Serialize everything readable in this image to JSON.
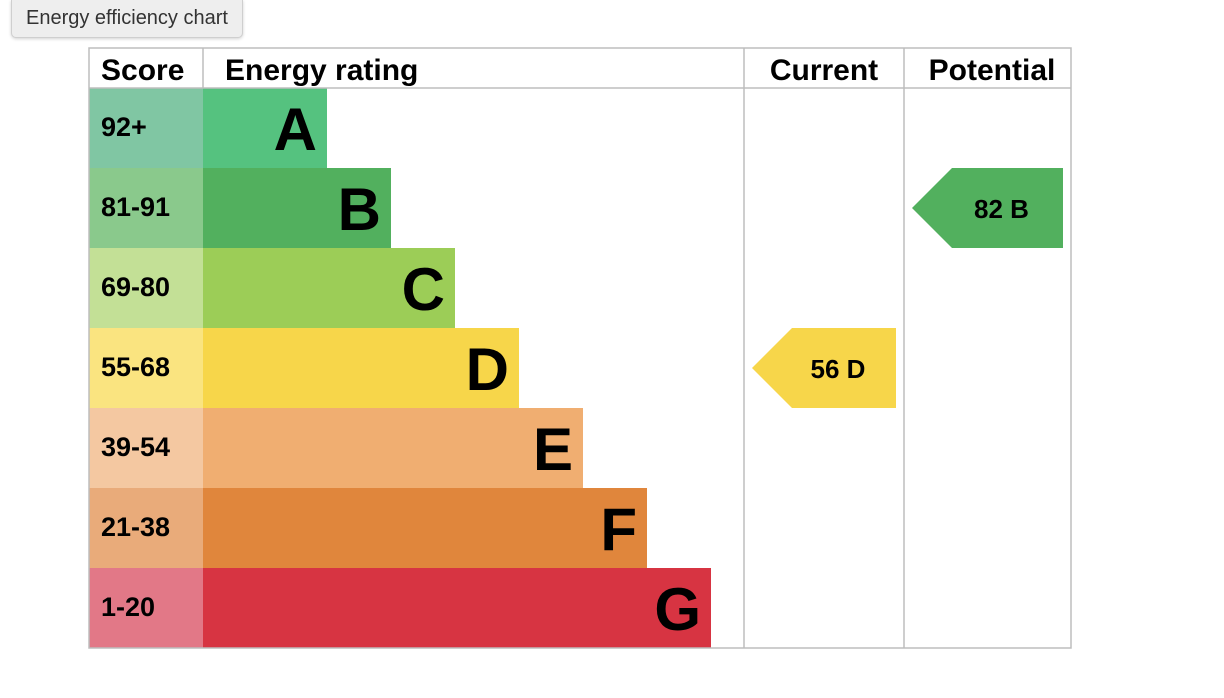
{
  "tooltip": "Energy efficiency chart",
  "chart_data": {
    "type": "table",
    "headers": {
      "score": "Score",
      "rating": "Energy rating",
      "current": "Current",
      "potential": "Potential"
    },
    "bands": [
      {
        "score": "92+",
        "letter": "A",
        "color": "#55c27f",
        "score_color": "#80c6a3"
      },
      {
        "score": "81-91",
        "letter": "B",
        "color": "#52b05e",
        "score_color": "#8ac98c"
      },
      {
        "score": "69-80",
        "letter": "C",
        "color": "#9ccd57",
        "score_color": "#c3e096"
      },
      {
        "score": "55-68",
        "letter": "D",
        "color": "#f7d64a",
        "score_color": "#fae480"
      },
      {
        "score": "39-54",
        "letter": "E",
        "color": "#f0ae71",
        "score_color": "#f4c8a1"
      },
      {
        "score": "21-38",
        "letter": "F",
        "color": "#e0863c",
        "score_color": "#e9ab7a"
      },
      {
        "score": "1-20",
        "letter": "G",
        "color": "#d73442",
        "score_color": "#e27887"
      }
    ],
    "current": {
      "value": 56,
      "band": "D",
      "label": "56  D",
      "color": "#f7d64a"
    },
    "potential": {
      "value": 82,
      "band": "B",
      "label": "82  B",
      "color": "#52b05e"
    }
  }
}
